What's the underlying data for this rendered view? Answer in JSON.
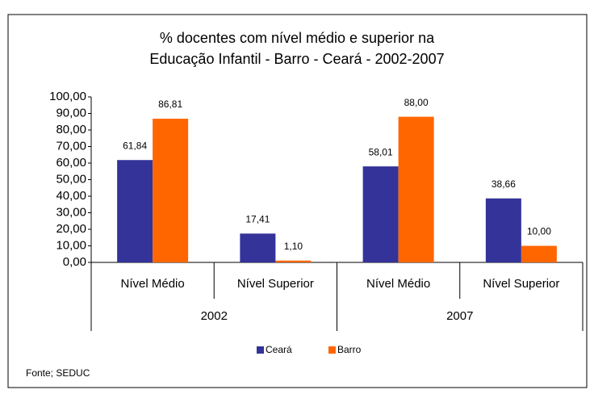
{
  "chart_data": {
    "type": "bar",
    "title_lines": [
      "% docentes com nível médio e superior na",
      "Educação Infantil - Barro -  Ceará - 2002-2007"
    ],
    "categories": [
      "Nível Médio",
      "Nível Superior",
      "Nível Médio",
      "Nível Superior"
    ],
    "groups": [
      "2002",
      "2007"
    ],
    "series": [
      {
        "name": "Ceará",
        "color": "#333399",
        "values": [
          61.84,
          17.41,
          58.01,
          38.66
        ],
        "value_labels": [
          "61,84",
          "17,41",
          "58,01",
          "38,66"
        ]
      },
      {
        "name": "Barro",
        "color": "#ff6600",
        "values": [
          86.81,
          1.1,
          88.0,
          10.0
        ],
        "value_labels": [
          "86,81",
          "1,10",
          "88,00",
          "10,00"
        ]
      }
    ],
    "ylim": [
      0,
      100
    ],
    "yticks": [
      {
        "value": 0,
        "label": "0,00"
      },
      {
        "value": 10,
        "label": "10,00"
      },
      {
        "value": 20,
        "label": "20,00"
      },
      {
        "value": 30,
        "label": "30,00"
      },
      {
        "value": 40,
        "label": "40,00"
      },
      {
        "value": 50,
        "label": "50,00"
      },
      {
        "value": 60,
        "label": "60,00"
      },
      {
        "value": 70,
        "label": "70,00"
      },
      {
        "value": 80,
        "label": "80,00"
      },
      {
        "value": 90,
        "label": "90,00"
      },
      {
        "value": 100,
        "label": "100,00"
      }
    ],
    "legend_position": "bottom",
    "note": "Fonte; SEDUC"
  }
}
